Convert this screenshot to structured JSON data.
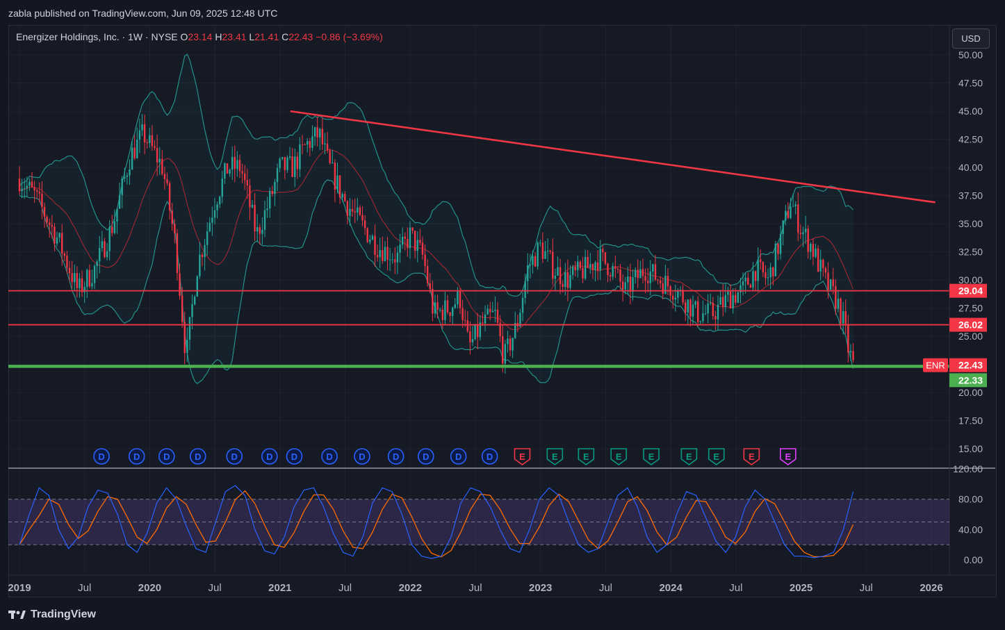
{
  "header": {
    "published_text": "zabla published on TradingView.com, Jun 09, 2025 12:48 UTC"
  },
  "legend": {
    "symbol": "Energizer Holdings, Inc. · 1W · NYSE",
    "open_label": "O",
    "open": "23.14",
    "high_label": "H",
    "high": "23.41",
    "low_label": "L",
    "low": "21.41",
    "close_label": "C",
    "close": "22.43",
    "change": "−0.86 (−3.69%)"
  },
  "currency": "USD",
  "footer": {
    "brand": "TradingView"
  },
  "colors": {
    "background": "#161a25",
    "up": "#26a69a",
    "down": "#f23645",
    "trendline": "#f23645",
    "support": "#4caf50",
    "bollinger": "#26a69a",
    "basis": "#b22833",
    "stoch_k": "#2962ff",
    "stoch_d": "#ff6d00",
    "stoch_band": "#7e57c2"
  },
  "chart_data": [
    {
      "type": "candlestick",
      "x_ticks": [
        "2019",
        "Jul",
        "2020",
        "Jul",
        "2021",
        "Jul",
        "2022",
        "Jul",
        "2023",
        "Jul",
        "2024",
        "Jul",
        "2025",
        "Jul",
        "2026"
      ],
      "x_tick_dates": [
        2019.0,
        2019.5,
        2020.0,
        2020.5,
        2021.0,
        2021.5,
        2022.0,
        2022.5,
        2023.0,
        2023.5,
        2024.0,
        2024.5,
        2025.0,
        2025.5,
        2026.0
      ],
      "y_ticks": [
        "50.00",
        "47.50",
        "45.00",
        "42.50",
        "40.00",
        "37.50",
        "35.00",
        "32.50",
        "30.00",
        "27.50",
        "25.00",
        "20.00",
        "17.50",
        "15.00"
      ],
      "ylim": [
        13.4,
        52.6
      ],
      "price_path": [
        [
          2019.0,
          39
        ],
        [
          2019.12,
          37.5
        ],
        [
          2019.3,
          33.5
        ],
        [
          2019.45,
          29
        ],
        [
          2019.58,
          31
        ],
        [
          2019.72,
          35
        ],
        [
          2019.85,
          41
        ],
        [
          2019.95,
          43
        ],
        [
          2020.1,
          40
        ],
        [
          2020.2,
          33
        ],
        [
          2020.28,
          23
        ],
        [
          2020.36,
          31
        ],
        [
          2020.5,
          37
        ],
        [
          2020.6,
          40
        ],
        [
          2020.7,
          40
        ],
        [
          2020.82,
          34
        ],
        [
          2020.92,
          37
        ],
        [
          2021.0,
          40
        ],
        [
          2021.1,
          40
        ],
        [
          2021.2,
          42
        ],
        [
          2021.3,
          43
        ],
        [
          2021.38,
          40
        ],
        [
          2021.5,
          37
        ],
        [
          2021.62,
          35
        ],
        [
          2021.75,
          33
        ],
        [
          2021.9,
          32
        ],
        [
          2022.0,
          34
        ],
        [
          2022.1,
          32
        ],
        [
          2022.18,
          27
        ],
        [
          2022.3,
          27.5
        ],
        [
          2022.38,
          28.5
        ],
        [
          2022.45,
          24
        ],
        [
          2022.55,
          26
        ],
        [
          2022.65,
          27
        ],
        [
          2022.72,
          23
        ],
        [
          2022.82,
          26
        ],
        [
          2022.9,
          31
        ],
        [
          2023.0,
          33
        ],
        [
          2023.1,
          31
        ],
        [
          2023.2,
          30
        ],
        [
          2023.35,
          31
        ],
        [
          2023.45,
          32
        ],
        [
          2023.55,
          31
        ],
        [
          2023.65,
          29
        ],
        [
          2023.8,
          31
        ],
        [
          2023.92,
          30
        ],
        [
          2024.05,
          29
        ],
        [
          2024.2,
          27
        ],
        [
          2024.32,
          27
        ],
        [
          2024.45,
          28.5
        ],
        [
          2024.55,
          29
        ],
        [
          2024.65,
          31
        ],
        [
          2024.75,
          30
        ],
        [
          2024.85,
          34
        ],
        [
          2024.92,
          37
        ],
        [
          2025.0,
          34.5
        ],
        [
          2025.08,
          33
        ],
        [
          2025.18,
          30
        ],
        [
          2025.28,
          28
        ],
        [
          2025.33,
          26
        ],
        [
          2025.36,
          24
        ],
        [
          2025.4,
          22.43
        ]
      ],
      "lines": [
        {
          "name": "",
          "kind": "trendline",
          "points": [
            [
              2021.08,
              45.0
            ],
            [
              2026.03,
              36.9
            ]
          ]
        },
        {
          "name": "",
          "kind": "resistance",
          "y": 29.04
        },
        {
          "name": "",
          "kind": "resistance",
          "y": 26.02
        },
        {
          "name": "",
          "kind": "support",
          "y": 22.33
        }
      ],
      "price_labels": [
        {
          "text": "29.04",
          "y": 29.04,
          "color": "#f23645"
        },
        {
          "text": "26.02",
          "y": 26.02,
          "color": "#f23645"
        },
        {
          "symbol": "ENR",
          "text": "22.43",
          "y": 22.43,
          "color": "#f23645"
        },
        {
          "text": "22.33",
          "y": 22.33,
          "color": "#4caf50"
        }
      ],
      "events": [
        {
          "date": 2019.63,
          "label": "D",
          "kind": "dividend"
        },
        {
          "date": 2019.9,
          "label": "D",
          "kind": "dividend"
        },
        {
          "date": 2020.13,
          "label": "D",
          "kind": "dividend"
        },
        {
          "date": 2020.37,
          "label": "D",
          "kind": "dividend"
        },
        {
          "date": 2020.65,
          "label": "D",
          "kind": "dividend"
        },
        {
          "date": 2020.92,
          "label": "D",
          "kind": "dividend"
        },
        {
          "date": 2021.11,
          "label": "D",
          "kind": "dividend"
        },
        {
          "date": 2021.38,
          "label": "D",
          "kind": "dividend"
        },
        {
          "date": 2021.63,
          "label": "D",
          "kind": "dividend"
        },
        {
          "date": 2021.89,
          "label": "D",
          "kind": "dividend"
        },
        {
          "date": 2022.12,
          "label": "D",
          "kind": "dividend"
        },
        {
          "date": 2022.37,
          "label": "D",
          "kind": "dividend"
        },
        {
          "date": 2022.61,
          "label": "D",
          "kind": "dividend"
        },
        {
          "date": 2022.86,
          "label": "E",
          "kind": "earnings-negative"
        },
        {
          "date": 2023.11,
          "label": "E",
          "kind": "earnings-positive"
        },
        {
          "date": 2023.35,
          "label": "E",
          "kind": "earnings-positive"
        },
        {
          "date": 2023.6,
          "label": "E",
          "kind": "earnings-positive"
        },
        {
          "date": 2023.85,
          "label": "E",
          "kind": "earnings-positive"
        },
        {
          "date": 2024.14,
          "label": "E",
          "kind": "earnings-positive"
        },
        {
          "date": 2024.35,
          "label": "E",
          "kind": "earnings-positive"
        },
        {
          "date": 2024.62,
          "label": "E",
          "kind": "earnings-negative"
        },
        {
          "date": 2024.9,
          "label": "E",
          "kind": "earnings-upcoming"
        }
      ]
    },
    {
      "type": "line",
      "y_ticks": [
        "120.00",
        "80.00",
        "40.00",
        "0.00"
      ],
      "ylim": [
        -20,
        120
      ],
      "bands": [
        20,
        50,
        80
      ],
      "series": [
        {
          "name": "",
          "values": [
            20,
            60,
            95,
            85,
            40,
            15,
            30,
            70,
            92,
            88,
            60,
            20,
            10,
            35,
            75,
            95,
            80,
            45,
            15,
            10,
            50,
            90,
            98,
            85,
            40,
            12,
            8,
            30,
            70,
            92,
            95,
            70,
            35,
            10,
            5,
            30,
            75,
            95,
            90,
            60,
            20,
            5,
            2,
            5,
            30,
            75,
            95,
            90,
            70,
            40,
            15,
            10,
            40,
            80,
            95,
            85,
            50,
            20,
            10,
            15,
            50,
            85,
            95,
            70,
            30,
            10,
            20,
            60,
            90,
            85,
            55,
            25,
            10,
            30,
            70,
            92,
            80,
            50,
            20,
            5,
            5,
            3,
            5,
            10,
            40,
            90
          ]
        }
      ]
    }
  ]
}
